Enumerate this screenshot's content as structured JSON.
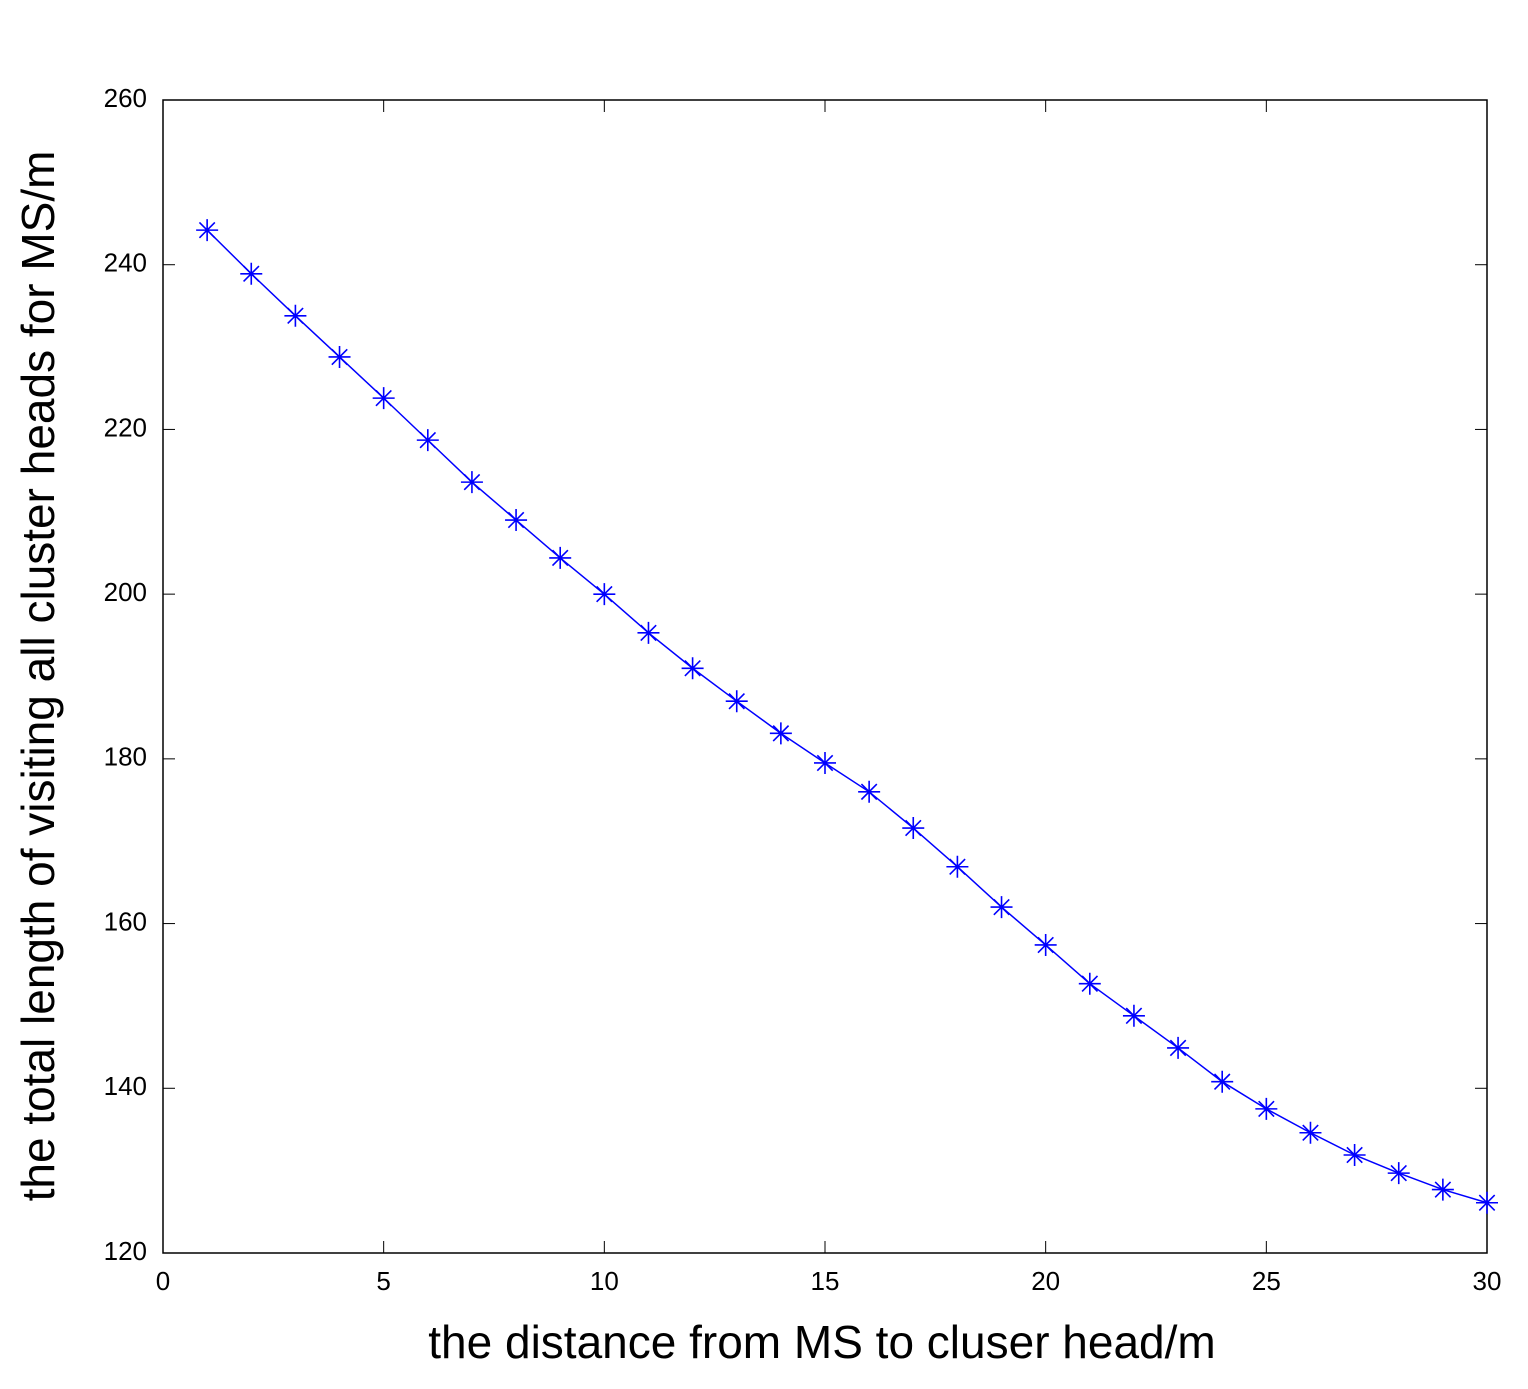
{
  "chart_data": {
    "type": "line",
    "xlabel": "the distance from MS to cluser head/m",
    "ylabel": "the total length of visiting all cluster heads for MS/m",
    "series": [
      {
        "color": "#0000ff",
        "marker": "asterisk",
        "x": [
          1,
          2,
          3,
          4,
          5,
          6,
          7,
          8,
          9,
          10,
          11,
          12,
          13,
          14,
          15,
          16,
          17,
          18,
          19,
          20,
          21,
          22,
          23,
          24,
          25,
          26,
          27,
          28,
          29,
          30
        ],
        "values": [
          244.2,
          238.9,
          233.8,
          228.8,
          223.8,
          218.7,
          213.6,
          209.0,
          204.4,
          200.0,
          195.3,
          191.0,
          187.0,
          183.1,
          179.5,
          176.0,
          171.6,
          166.9,
          162.0,
          157.4,
          152.7,
          148.8,
          144.9,
          140.8,
          137.5,
          134.6,
          131.9,
          129.7,
          127.7,
          126.1
        ]
      }
    ],
    "xlim": [
      0,
      30
    ],
    "xticks": [
      0,
      5,
      10,
      15,
      20,
      25,
      30
    ],
    "ylim": [
      120,
      260
    ],
    "yticks": [
      120,
      140,
      160,
      180,
      200,
      220,
      240,
      260
    ],
    "grid": false
  }
}
